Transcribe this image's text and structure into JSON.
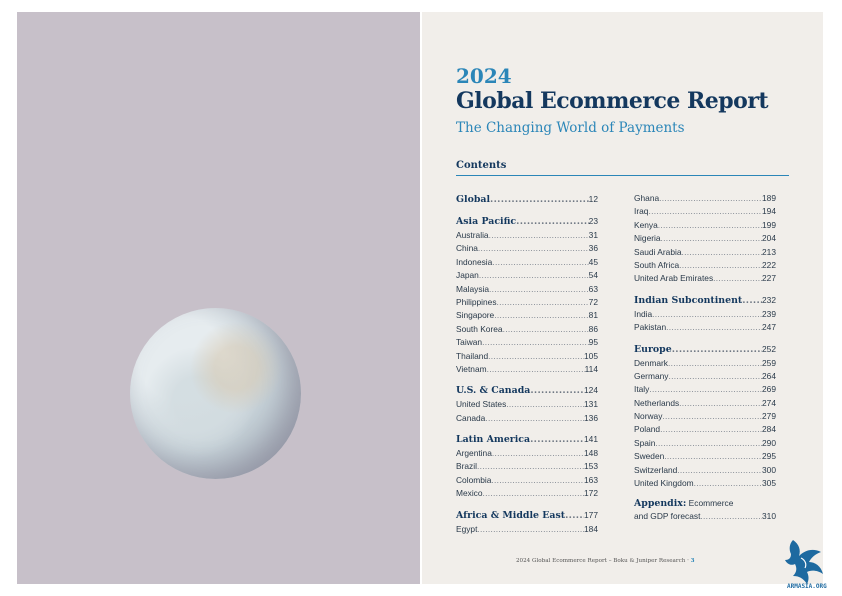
{
  "header": {
    "year": "2024",
    "title": "Global Ecommerce Report",
    "subtitle": "The Changing World of Payments"
  },
  "contents_heading": "Contents",
  "toc_left": [
    {
      "type": "section",
      "name": "Global",
      "page": "12"
    },
    {
      "type": "gap"
    },
    {
      "type": "section",
      "name": "Asia Pacific",
      "page": "23"
    },
    {
      "type": "item",
      "name": "Australia",
      "page": "31"
    },
    {
      "type": "item",
      "name": "China",
      "page": "36"
    },
    {
      "type": "item",
      "name": "Indonesia",
      "page": "45"
    },
    {
      "type": "item",
      "name": "Japan",
      "page": "54"
    },
    {
      "type": "item",
      "name": "Malaysia",
      "page": "63"
    },
    {
      "type": "item",
      "name": "Philippines",
      "page": "72"
    },
    {
      "type": "item",
      "name": "Singapore",
      "page": "81"
    },
    {
      "type": "item",
      "name": "South Korea",
      "page": "86"
    },
    {
      "type": "item",
      "name": "Taiwan",
      "page": "95"
    },
    {
      "type": "item",
      "name": "Thailand",
      "page": "105"
    },
    {
      "type": "item",
      "name": "Vietnam",
      "page": "114"
    },
    {
      "type": "gap"
    },
    {
      "type": "section",
      "name": "U.S. & Canada",
      "page": "124"
    },
    {
      "type": "item",
      "name": "United States",
      "page": "131"
    },
    {
      "type": "item",
      "name": "Canada",
      "page": "136"
    },
    {
      "type": "gap"
    },
    {
      "type": "section",
      "name": "Latin America",
      "page": "141"
    },
    {
      "type": "item",
      "name": "Argentina",
      "page": "148"
    },
    {
      "type": "item",
      "name": "Brazil",
      "page": "153"
    },
    {
      "type": "item",
      "name": "Colombia",
      "page": "163"
    },
    {
      "type": "item",
      "name": "Mexico",
      "page": "172"
    },
    {
      "type": "gap"
    },
    {
      "type": "section",
      "name": "Africa & Middle East",
      "page": "177"
    },
    {
      "type": "item",
      "name": "Egypt",
      "page": "184"
    }
  ],
  "toc_right": [
    {
      "type": "item",
      "name": "Ghana",
      "page": "189"
    },
    {
      "type": "item",
      "name": "Iraq",
      "page": "194"
    },
    {
      "type": "item",
      "name": "Kenya",
      "page": "199"
    },
    {
      "type": "item",
      "name": "Nigeria",
      "page": "204"
    },
    {
      "type": "item",
      "name": "Saudi Arabia",
      "page": "213"
    },
    {
      "type": "item",
      "name": "South Africa",
      "page": "222"
    },
    {
      "type": "item",
      "name": "United Arab Emirates",
      "page": "227"
    },
    {
      "type": "gap"
    },
    {
      "type": "section",
      "name": "Indian Subcontinent",
      "page": "232"
    },
    {
      "type": "item",
      "name": "India",
      "page": "239"
    },
    {
      "type": "item",
      "name": "Pakistan",
      "page": "247"
    },
    {
      "type": "gap"
    },
    {
      "type": "section",
      "name": "Europe",
      "page": "252"
    },
    {
      "type": "item",
      "name": "Denmark",
      "page": "259"
    },
    {
      "type": "item",
      "name": "Germany",
      "page": "264"
    },
    {
      "type": "item",
      "name": "Italy",
      "page": "269"
    },
    {
      "type": "item",
      "name": "Netherlands",
      "page": "274"
    },
    {
      "type": "item",
      "name": "Norway",
      "page": "279"
    },
    {
      "type": "item",
      "name": "Poland",
      "page": "284"
    },
    {
      "type": "item",
      "name": "Spain",
      "page": "290"
    },
    {
      "type": "item",
      "name": "Sweden",
      "page": "295"
    },
    {
      "type": "item",
      "name": "Switzerland",
      "page": "300"
    },
    {
      "type": "item",
      "name": "United Kingdom",
      "page": "305"
    },
    {
      "type": "gap"
    }
  ],
  "appendix": {
    "label": "Appendix:",
    "line1_rest": " Ecommerce",
    "line2": "and GDP forecast",
    "page": "310"
  },
  "footer": {
    "text": "2024 Global Ecommerce Report – Boku & Juniper Research",
    "separator": " · ",
    "page_number": "3"
  },
  "watermark": {
    "icon": "griffin-logo-icon",
    "text": "ARMASIA.ORG",
    "color": "#1e6aa0"
  },
  "colors": {
    "accent_blue": "#2b86b8",
    "navy": "#14385e",
    "left_page_bg": "#c7c0c9",
    "right_page_bg": "#f1eeea"
  }
}
